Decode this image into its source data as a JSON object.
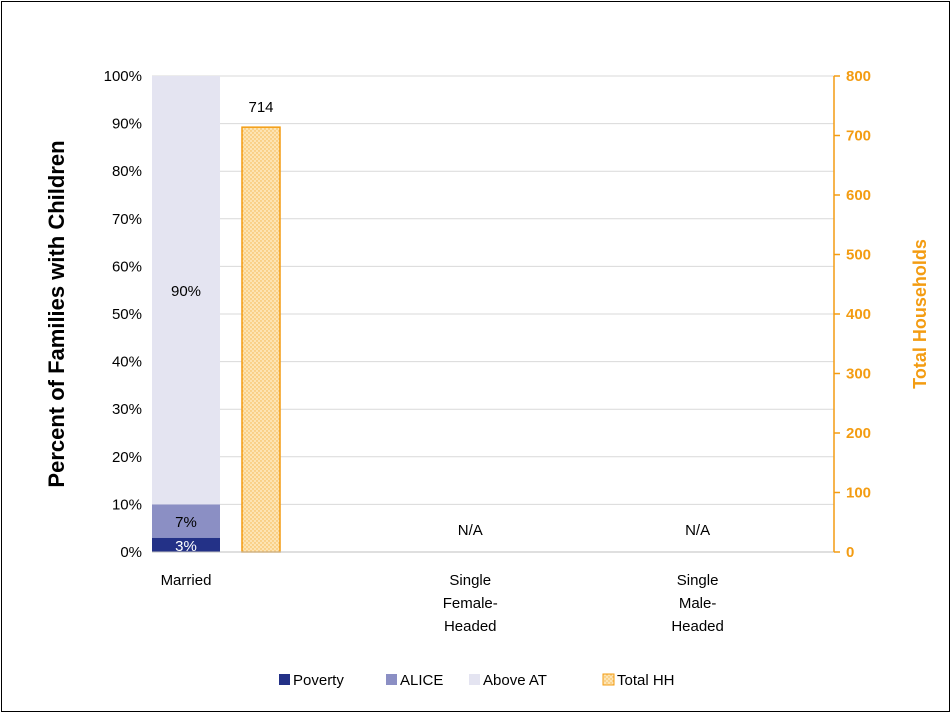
{
  "chart_data": {
    "type": "bar",
    "categories": [
      "Married",
      "Single\nFemale-\nHeaded",
      "Single\nMale-\nHeaded"
    ],
    "y_axis": {
      "label": "Percent of Families with Children",
      "ylim": [
        0,
        100
      ],
      "ticks": [
        "0%",
        "10%",
        "20%",
        "30%",
        "40%",
        "50%",
        "60%",
        "70%",
        "80%",
        "90%",
        "100%"
      ]
    },
    "y2_axis": {
      "label": "Total Households",
      "ylim": [
        0,
        800
      ],
      "ticks": [
        "0",
        "100",
        "200",
        "300",
        "400",
        "500",
        "600",
        "700",
        "800"
      ]
    },
    "series": [
      {
        "name": "Poverty",
        "axis": "left",
        "stacked": true,
        "values": [
          3,
          null,
          null
        ],
        "labels": [
          "3%",
          "",
          ""
        ]
      },
      {
        "name": "ALICE",
        "axis": "left",
        "stacked": true,
        "values": [
          7,
          null,
          null
        ],
        "labels": [
          "7%",
          "",
          ""
        ]
      },
      {
        "name": "Above AT",
        "axis": "left",
        "stacked": true,
        "values": [
          90,
          null,
          null
        ],
        "labels": [
          "90%",
          "",
          ""
        ]
      },
      {
        "name": "Total HH",
        "axis": "right",
        "values": [
          714,
          null,
          null
        ],
        "labels": [
          "714",
          "N/A",
          "N/A"
        ]
      }
    ],
    "grid": true,
    "legend_position": "bottom"
  },
  "colors": {
    "poverty": "#233187",
    "alice": "#8b8fc4",
    "above_at": "#e4e4f1",
    "total_hh_border": "#f39c12",
    "total_hh_fill": "#fde4b3",
    "gridline": "#d9d9d9",
    "right_axis": "#f39c12"
  }
}
